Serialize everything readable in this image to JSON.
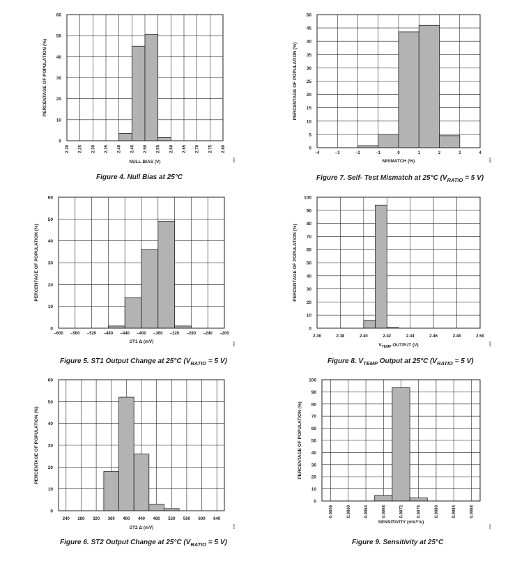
{
  "figures": [
    {
      "caption": "Figure 4. Null Bias at 25°C",
      "code": "005",
      "chart_data": {
        "type": "bar",
        "ylabel": "PERCENTAGE OF POPULATION (%)",
        "xlabel": "NULL BIAS (V)",
        "ylim": [
          0,
          60
        ],
        "yticks": [
          0,
          10,
          20,
          30,
          40,
          50,
          60
        ],
        "xlim": [
          2.2,
          2.8
        ],
        "xticks": [
          2.2,
          2.25,
          2.3,
          2.35,
          2.4,
          2.45,
          2.5,
          2.55,
          2.6,
          2.65,
          2.7,
          2.75,
          2.8
        ],
        "xtick_labels": [
          "2.20",
          "2.25",
          "2.30",
          "2.35",
          "2.40",
          "2.45",
          "2.50",
          "2.55",
          "2.60",
          "2.65",
          "2.70",
          "2.75",
          "2.80"
        ],
        "xtick_rotate": true,
        "grid": true,
        "bins": [
          {
            "from": 2.4,
            "to": 2.45,
            "value": 3.5
          },
          {
            "from": 2.45,
            "to": 2.5,
            "value": 45
          },
          {
            "from": 2.5,
            "to": 2.55,
            "value": 50.5
          },
          {
            "from": 2.55,
            "to": 2.6,
            "value": 1.5
          }
        ]
      }
    },
    {
      "caption": "Figure 7. Self- Test Mismatch at 25°C (V",
      "caption_sub": "RATIO",
      "caption_tail": " = 5 V)",
      "code": "008",
      "chart_data": {
        "type": "bar",
        "ylabel": "PERCENTAGE OF POPULATION (%)",
        "xlabel": "MISMATCH (%)",
        "ylim": [
          0,
          50
        ],
        "yticks": [
          0,
          5,
          10,
          15,
          20,
          25,
          30,
          35,
          40,
          45,
          50
        ],
        "xlim": [
          -4,
          4
        ],
        "xticks": [
          -4,
          -3,
          -2,
          -1,
          0,
          1,
          2,
          3,
          4
        ],
        "xtick_labels": [
          "–4",
          "–3",
          "–2",
          "–1",
          "0",
          "1",
          "2",
          "3",
          "4"
        ],
        "xtick_rotate": false,
        "grid": true,
        "bins": [
          {
            "from": -2,
            "to": -1,
            "value": 0.8
          },
          {
            "from": -1,
            "to": 0,
            "value": 5
          },
          {
            "from": 0,
            "to": 1,
            "value": 43.5
          },
          {
            "from": 1,
            "to": 2,
            "value": 46
          },
          {
            "from": 2,
            "to": 3,
            "value": 4.5
          }
        ]
      }
    },
    {
      "caption": "Figure 5. ST1 Output Change at 25°C (V",
      "caption_sub": "RATIO",
      "caption_tail": " = 5 V)",
      "code": "006",
      "chart_data": {
        "type": "bar",
        "ylabel": "PERCENTAGE OF POPULATION (%)",
        "xlabel": "ST1 Δ (mV)",
        "ylim": [
          0,
          60
        ],
        "yticks": [
          0,
          10,
          20,
          30,
          40,
          50,
          60
        ],
        "xlim": [
          -600,
          -200
        ],
        "xticks": [
          -600,
          -560,
          -520,
          -480,
          -440,
          -400,
          -360,
          -320,
          -280,
          -240,
          -200
        ],
        "xtick_labels": [
          "–600",
          "–560",
          "–520",
          "–480",
          "–440",
          "–400",
          "–360",
          "–320",
          "–280",
          "–240",
          "–200"
        ],
        "xtick_rotate": false,
        "grid": true,
        "bins": [
          {
            "from": -480,
            "to": -440,
            "value": 1
          },
          {
            "from": -440,
            "to": -400,
            "value": 14
          },
          {
            "from": -400,
            "to": -360,
            "value": 36
          },
          {
            "from": -360,
            "to": -320,
            "value": 49
          },
          {
            "from": -320,
            "to": -280,
            "value": 1
          }
        ]
      }
    },
    {
      "caption": "Figure 8. V",
      "caption_sub": "TEMP",
      "caption_tail": " Output at 25°C (V",
      "caption_sub2": "RATIO",
      "caption_tail2": " = 5 V)",
      "code": "009",
      "chart_data": {
        "type": "bar",
        "ylabel": "PERCENTAGE OF POPULATION (%)",
        "xlabel": "V",
        "xlabel_sub": "TEMP",
        "xlabel_tail": " OUTPUT (V)",
        "ylim": [
          0,
          100
        ],
        "yticks": [
          0,
          10,
          20,
          30,
          40,
          50,
          60,
          70,
          80,
          90,
          100
        ],
        "xlim": [
          2.36,
          2.5
        ],
        "xticks": [
          2.36,
          2.38,
          2.4,
          2.42,
          2.44,
          2.46,
          2.48,
          2.5
        ],
        "xtick_labels": [
          "2.36",
          "2.38",
          "2.40",
          "2.42",
          "2.44",
          "2.46",
          "2.48",
          "2.50"
        ],
        "xtick_rotate": false,
        "xtick_below": true,
        "grid": true,
        "bins": [
          {
            "from": 2.4,
            "to": 2.41,
            "value": 6
          },
          {
            "from": 2.41,
            "to": 2.42,
            "value": 94
          },
          {
            "from": 2.42,
            "to": 2.43,
            "value": 0.5
          }
        ]
      }
    },
    {
      "caption": "Figure 6. ST2 Output Change at 25°C (V",
      "caption_sub": "RATIO",
      "caption_tail": " = 5 V)",
      "code": "007",
      "chart_data": {
        "type": "bar",
        "ylabel": "PERCENTAGE OF POPULATION (%)",
        "xlabel": "ST2 Δ (mV)",
        "ylim": [
          0,
          60
        ],
        "yticks": [
          0,
          10,
          20,
          30,
          40,
          50,
          60
        ],
        "xlim": [
          220,
          660
        ],
        "xticks": [
          240,
          280,
          320,
          360,
          400,
          440,
          480,
          520,
          560,
          600,
          640
        ],
        "xtick_labels": [
          "240",
          "280",
          "320",
          "360",
          "400",
          "440",
          "480",
          "520",
          "560",
          "600",
          "640"
        ],
        "xtick_rotate": false,
        "xtick_below": true,
        "grid": true,
        "bins": [
          {
            "from": 340,
            "to": 380,
            "value": 18
          },
          {
            "from": 380,
            "to": 420,
            "value": 52
          },
          {
            "from": 420,
            "to": 460,
            "value": 26
          },
          {
            "from": 460,
            "to": 500,
            "value": 3
          },
          {
            "from": 500,
            "to": 540,
            "value": 1
          }
        ]
      }
    },
    {
      "caption": "Figure 9. Sensitivity at 25°C",
      "code": "010",
      "chart_data": {
        "type": "bar",
        "ylabel": "PERCENTAGE OF POPULATION (%)",
        "xlabel": "SENSITIVITY (mV/°/s)",
        "ylim": [
          0,
          100
        ],
        "yticks": [
          0,
          10,
          20,
          30,
          40,
          50,
          60,
          70,
          80,
          90,
          100
        ],
        "xlim": [
          0.0054,
          0.009
        ],
        "xticks": [
          0.0056,
          0.006,
          0.0064,
          0.0068,
          0.0072,
          0.0076,
          0.008,
          0.0084,
          0.0088
        ],
        "xtick_labels": [
          "0.0056",
          "0.0060",
          "0.0064",
          "0.0068",
          "0.0072",
          "0.0076",
          "0.0080",
          "0.0084",
          "0.0088"
        ],
        "xtick_rotate": true,
        "grid": true,
        "bins": [
          {
            "from": 0.0066,
            "to": 0.007,
            "value": 4.5
          },
          {
            "from": 0.007,
            "to": 0.0074,
            "value": 93.5
          },
          {
            "from": 0.0074,
            "to": 0.0078,
            "value": 2.5
          }
        ]
      }
    }
  ]
}
